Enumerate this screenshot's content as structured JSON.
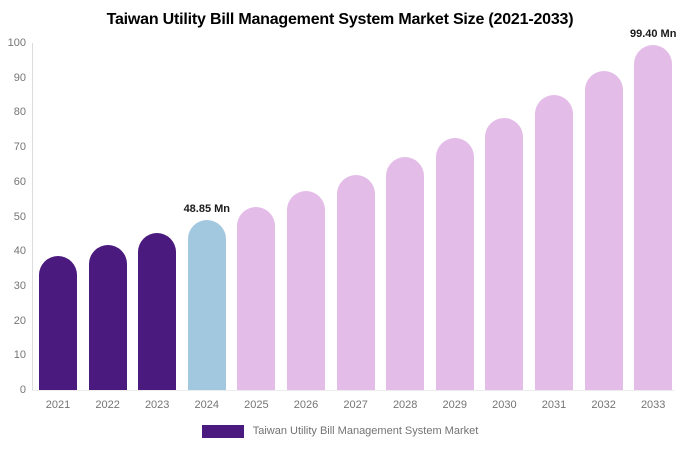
{
  "chart_data": {
    "type": "bar",
    "title": "Taiwan Utility Bill Management System Market Size (2021-2033)",
    "categories": [
      "2021",
      "2022",
      "2023",
      "2024",
      "2025",
      "2026",
      "2027",
      "2028",
      "2029",
      "2030",
      "2031",
      "2032",
      "2033"
    ],
    "values": [
      38.54,
      41.71,
      45.14,
      48.85,
      52.87,
      57.21,
      61.92,
      67.01,
      72.52,
      78.48,
      84.93,
      91.91,
      99.4
    ],
    "unit": "Mn",
    "xlabel": "",
    "ylabel": "",
    "ylim": [
      0,
      100
    ],
    "yticks": [
      0,
      10,
      20,
      30,
      40,
      50,
      60,
      70,
      80,
      90,
      100
    ],
    "grid": false,
    "background_color": "#ffffff",
    "point_colors": [
      "#4B1A7F",
      "#4B1A7F",
      "#4B1A7F",
      "#A2C8E0",
      "#E4BCE8",
      "#E4BCE8",
      "#E4BCE8",
      "#E4BCE8",
      "#E4BCE8",
      "#E4BCE8",
      "#E4BCE8",
      "#E4BCE8",
      "#E4BCE8"
    ],
    "color_roles": {
      "historical_2021_2023": "#4B1A7F",
      "current_2024": "#A2C8E0",
      "forecast_2025_2033": "#E4BCE8"
    },
    "annotations": [
      {
        "category": "2024",
        "text": "48.85 Mn"
      },
      {
        "category": "2033",
        "text": "99.40 Mn"
      }
    ],
    "legend": {
      "position": "bottom",
      "label": "Taiwan Utility Bill Management System Market",
      "swatch_color": "#4B1A7F"
    }
  }
}
